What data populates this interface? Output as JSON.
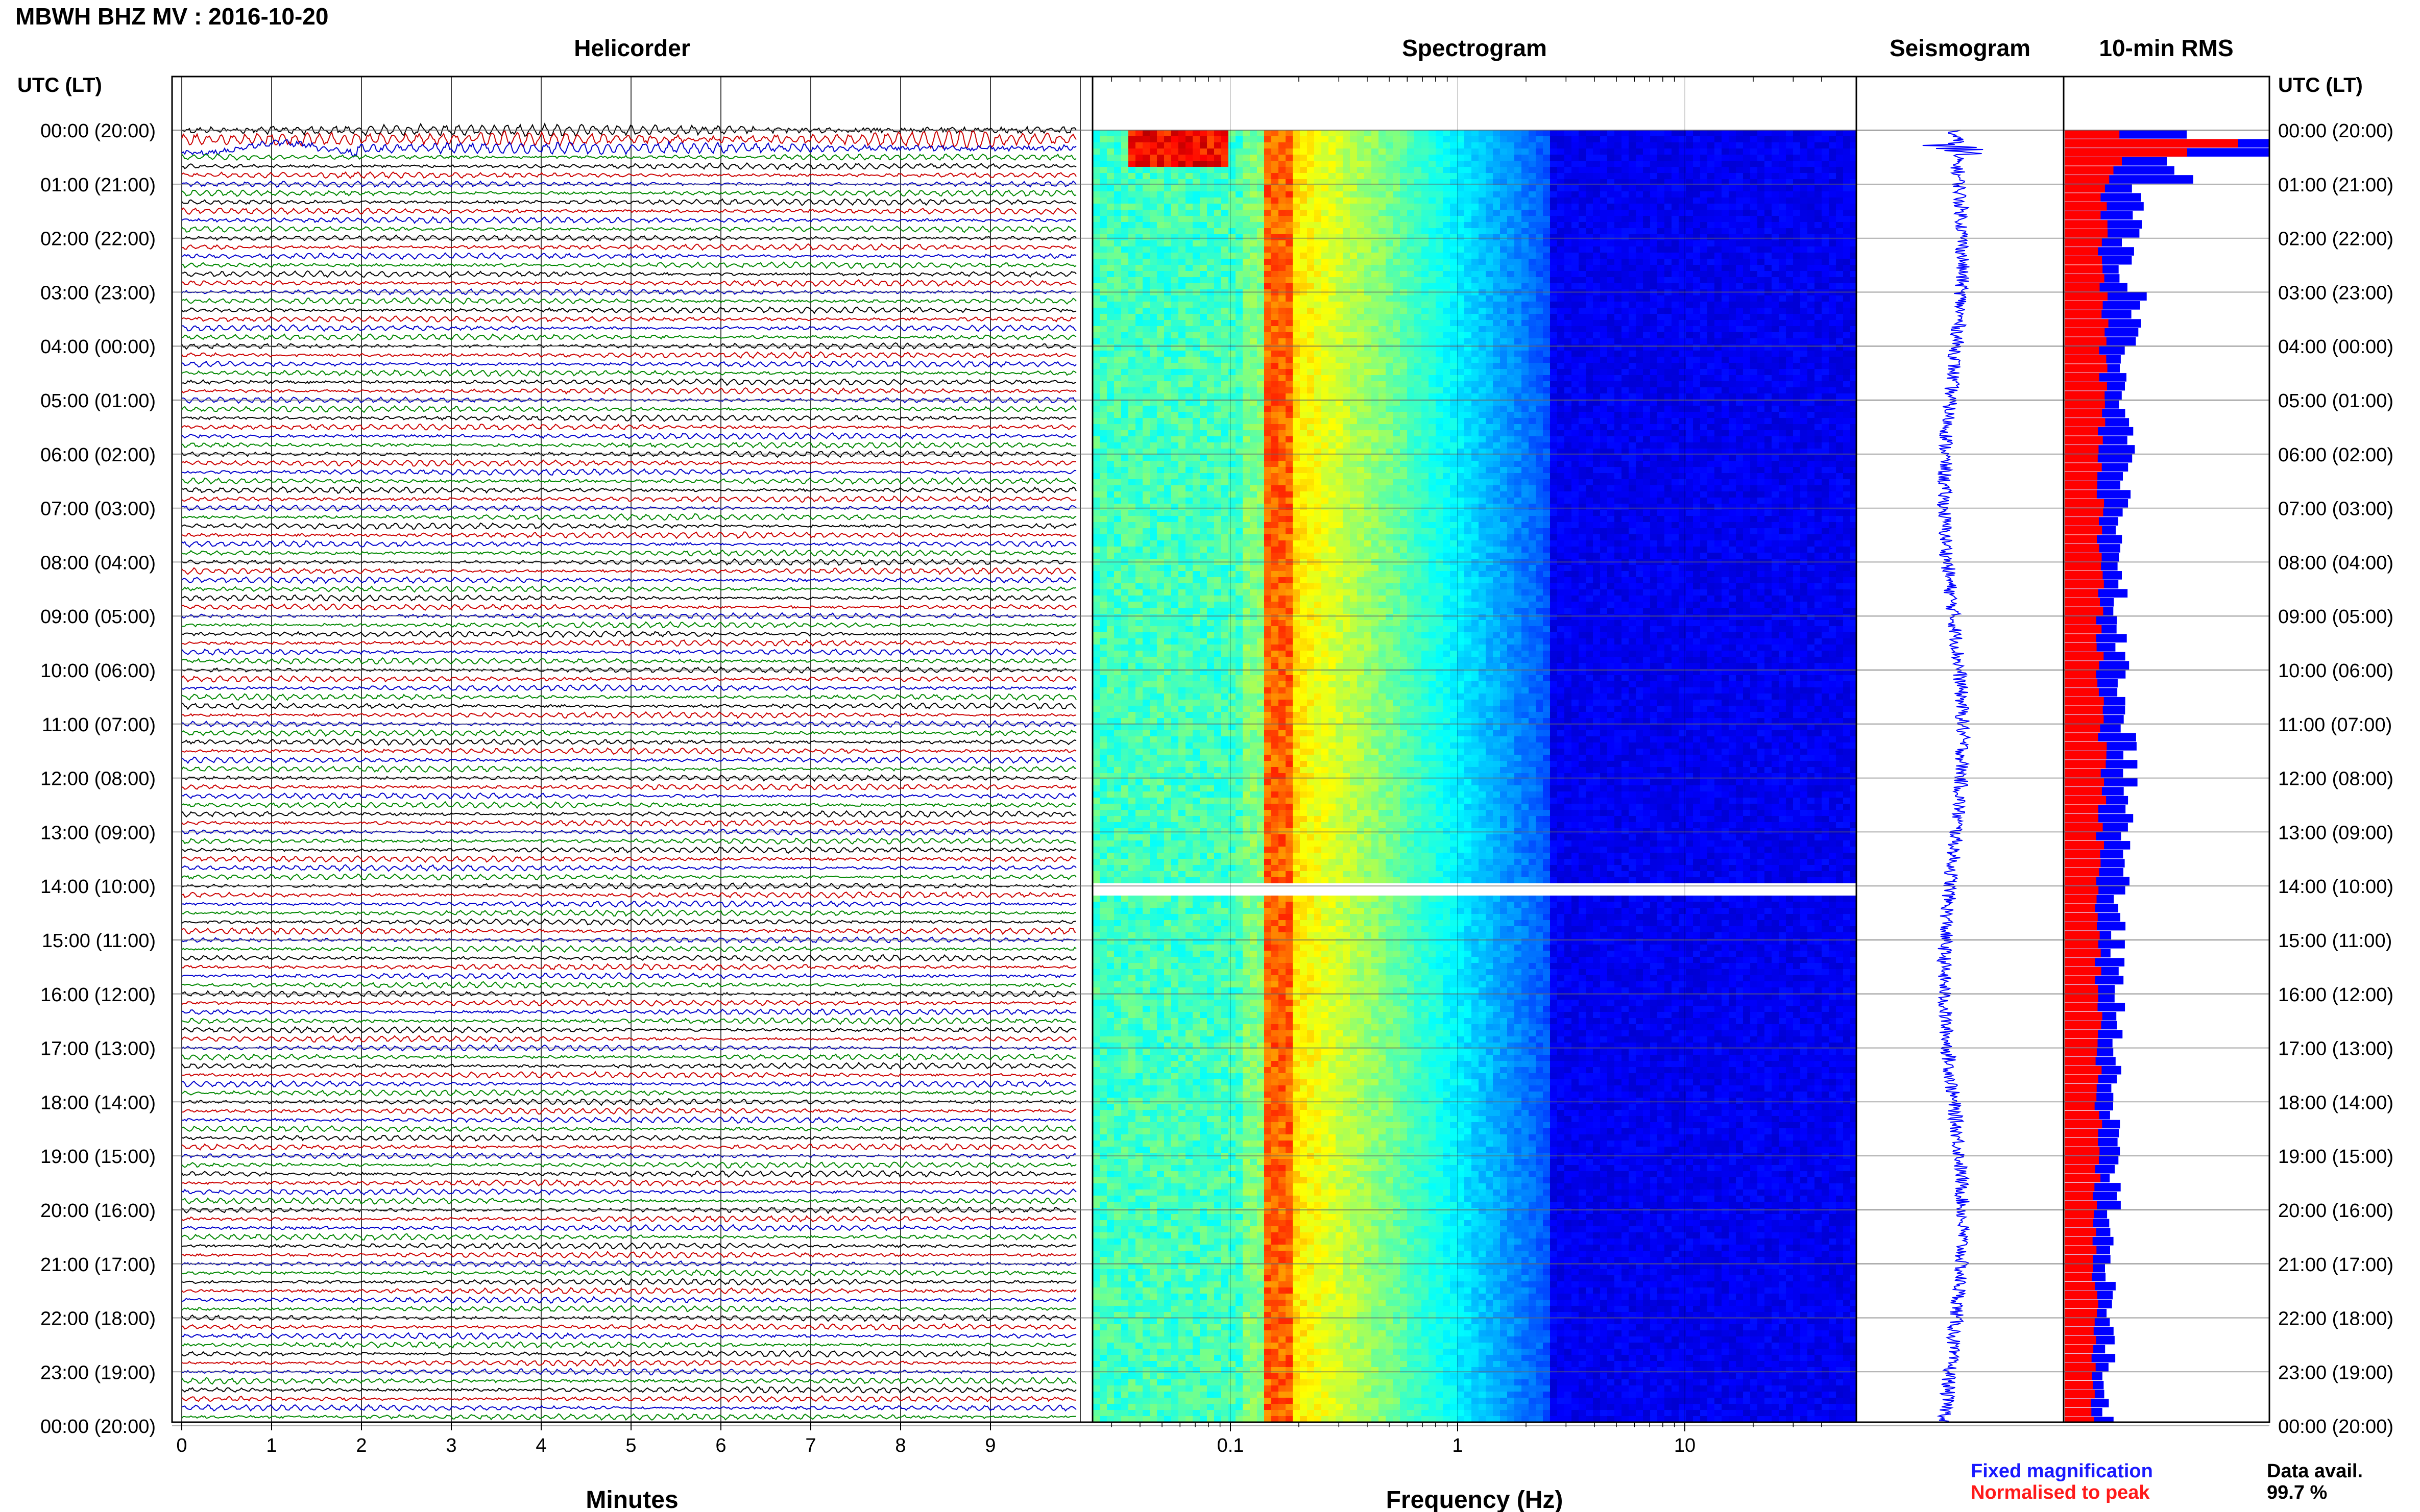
{
  "title": "MBWH BHZ MV : 2016-10-20",
  "panels": {
    "helicorder": "Helicorder",
    "spectrogram": "Spectrogram",
    "seismogram": "Seismogram",
    "rms": "10-min RMS"
  },
  "axis_header_left": "UTC (LT)",
  "axis_header_right": "UTC (LT)",
  "time_labels": [
    "00:00 (20:00)",
    "01:00 (21:00)",
    "02:00 (22:00)",
    "03:00 (23:00)",
    "04:00 (00:00)",
    "05:00 (01:00)",
    "06:00 (02:00)",
    "07:00 (03:00)",
    "08:00 (04:00)",
    "09:00 (05:00)",
    "10:00 (06:00)",
    "11:00 (07:00)",
    "12:00 (08:00)",
    "13:00 (09:00)",
    "14:00 (10:00)",
    "15:00 (11:00)",
    "16:00 (12:00)",
    "17:00 (13:00)",
    "18:00 (14:00)",
    "19:00 (15:00)",
    "20:00 (16:00)",
    "21:00 (17:00)",
    "22:00 (18:00)",
    "23:00 (19:00)",
    "00:00 (20:00)"
  ],
  "minutes_ticks": [
    "0",
    "1",
    "2",
    "3",
    "4",
    "5",
    "6",
    "7",
    "8",
    "9"
  ],
  "minutes_label": "Minutes",
  "freq_ticks": [
    "0.1",
    "1",
    "10"
  ],
  "freq_label": "Frequency (Hz)",
  "legend": {
    "fixed": "Fixed magnification",
    "normalised": "Normalised to peak",
    "fixed_color": "#1a1aff",
    "normalised_color": "#ff1a1a"
  },
  "data_avail_label": "Data avail.",
  "data_avail_value": "99.7 %",
  "colors": {
    "trace_cycle": [
      "#000000",
      "#cc0000",
      "#0000cc",
      "#008800"
    ],
    "rms_fixed": "#0000ff",
    "rms_normalised": "#ff0000",
    "seismogram": "#0000ff",
    "spectrogram_colormap": "jet"
  },
  "chart_data": [
    {
      "type": "line",
      "title": "Helicorder",
      "xlabel": "Minutes",
      "x_ticks": [
        0,
        1,
        2,
        3,
        4,
        5,
        6,
        7,
        8,
        9
      ],
      "xlim": [
        0,
        10
      ],
      "rows": 144,
      "row_minutes": 10,
      "notes_visible": [
        "larger event near 00:10–00:20",
        "green blip near 06:00 at 3.5 min"
      ]
    },
    {
      "type": "heatmap",
      "title": "Spectrogram",
      "xlabel": "Frequency (Hz)",
      "x_scale": "log",
      "xlim": [
        0.02,
        50
      ],
      "x_ticks": [
        0.1,
        1,
        10
      ],
      "data_gap_hour": 14
    },
    {
      "type": "line",
      "title": "Seismogram",
      "hours": 24,
      "event_hour": 0.3
    },
    {
      "type": "bar",
      "title": "10-min RMS",
      "series": [
        {
          "name": "Fixed magnification"
        },
        {
          "name": "Normalised to peak"
        }
      ],
      "hourly_fixed_rms": [
        0.55,
        0.34,
        0.3,
        0.36,
        0.3,
        0.3,
        0.3,
        0.28,
        0.28,
        0.28,
        0.29,
        0.32,
        0.31,
        0.3,
        0.26,
        0.26,
        0.26,
        0.26,
        0.26,
        0.24,
        0.23,
        0.22,
        0.22,
        0.21
      ],
      "hourly_normalised_rms": [
        0.25,
        0.2,
        0.19,
        0.2,
        0.19,
        0.19,
        0.18,
        0.18,
        0.18,
        0.18,
        0.18,
        0.19,
        0.19,
        0.18,
        0.17,
        0.17,
        0.17,
        0.17,
        0.17,
        0.16,
        0.16,
        0.15,
        0.15,
        0.15
      ],
      "peak_bar_hour": 0.2,
      "peak_value": 1.0
    }
  ]
}
